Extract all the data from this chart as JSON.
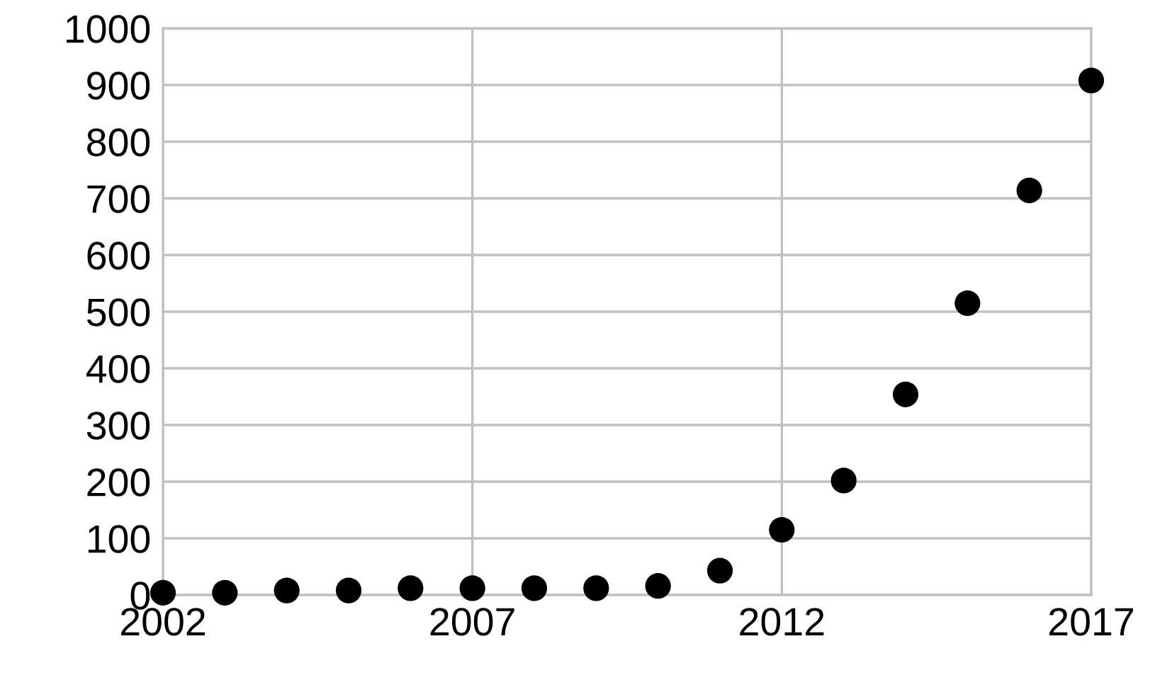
{
  "chart_data": {
    "type": "scatter",
    "x": [
      2002,
      2003,
      2004,
      2005,
      2006,
      2007,
      2008,
      2009,
      2010,
      2011,
      2012,
      2013,
      2014,
      2015,
      2016,
      2017
    ],
    "series": [
      {
        "color": "#000000",
        "values": [
          4,
          4,
          8,
          8,
          12,
          12,
          12,
          12,
          16,
          43,
          115,
          202,
          354,
          515,
          714,
          908
        ]
      }
    ],
    "xlim": [
      2002,
      2017
    ],
    "xticks": [
      2002,
      2007,
      2012,
      2017
    ],
    "ylim": [
      0,
      1000
    ],
    "yticks": [
      0,
      100,
      200,
      300,
      400,
      500,
      600,
      700,
      800,
      900,
      1000
    ],
    "grid": true,
    "marker": "circle"
  }
}
